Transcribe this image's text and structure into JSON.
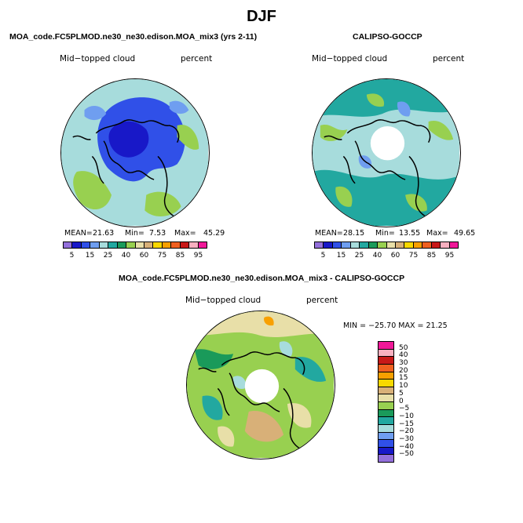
{
  "title": "DJF",
  "panels": [
    {
      "title": "MOA_code.FC5PLMOD.ne30_ne30.edison.MOA_mix3 (yrs 2-11)",
      "variable": "Mid−topped cloud",
      "units": "percent",
      "stats": {
        "mean_label": "MEAN=",
        "mean": "21.63",
        "min_label": "Min=",
        "min": "7.53",
        "max_label": "Max=",
        "max": "45.29"
      },
      "field": "model"
    },
    {
      "title": "CALIPSO-GOCCP",
      "variable": "Mid−topped cloud",
      "units": "percent",
      "stats": {
        "mean_label": "MEAN=",
        "mean": "28.15",
        "min_label": "Min=",
        "min": "13.55",
        "max_label": "Max=",
        "max": "49.65"
      },
      "field": "obs"
    },
    {
      "title": "MOA_code.FC5PLMOD.ne30_ne30.edison.MOA_mix3 - CALIPSO-GOCCP",
      "variable": "Mid−topped cloud",
      "units": "percent",
      "stats_text": "MIN = −25.70 MAX =  21.25",
      "field": "diff"
    }
  ],
  "colorbar_abs": {
    "colors": [
      "#9370db",
      "#1818c8",
      "#3050e8",
      "#6f9ef0",
      "#a7dcdc",
      "#22a8a0",
      "#1a9a5a",
      "#98d050",
      "#e8dfa8",
      "#d8b078",
      "#f8d800",
      "#f8a000",
      "#f06020",
      "#c81818",
      "#f8b0c0",
      "#f01898"
    ],
    "labels": [
      "5",
      "15",
      "25",
      "40",
      "60",
      "75",
      "85",
      "95"
    ]
  },
  "colorbar_diff": {
    "colors": [
      "#f01898",
      "#f8b0c0",
      "#c81818",
      "#f06020",
      "#f8a000",
      "#f8d800",
      "#d8b078",
      "#e8dfa8",
      "#98d050",
      "#1a9a5a",
      "#22a8a0",
      "#a7dcdc",
      "#6f9ef0",
      "#3050e8",
      "#1818c8",
      "#9370db"
    ],
    "labels": [
      "50",
      "40",
      "30",
      "20",
      "15",
      "10",
      "5",
      "0",
      "−5",
      "−10",
      "−15",
      "−20",
      "−30",
      "−40",
      "−50"
    ]
  }
}
